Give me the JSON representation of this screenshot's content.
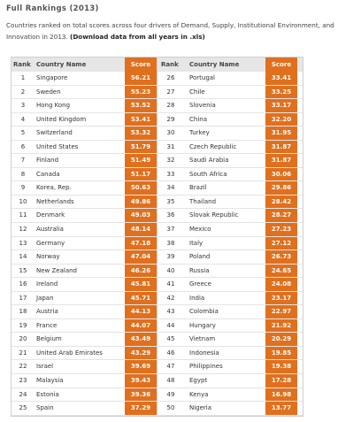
{
  "title": "Full Rankings (2013)",
  "intro": {
    "text": "Countries ranked on total scores across four drivers of Demand, Supply, Institutional Environment, and Innovation in 2013. ",
    "download_link": "(Download data from all years in .xls)"
  },
  "table": {
    "headers": {
      "rank": "Rank",
      "country": "Country Name",
      "score": "Score"
    },
    "left": [
      {
        "rank": "1",
        "country": "Singapore",
        "score": "56.21"
      },
      {
        "rank": "2",
        "country": "Sweden",
        "score": "55.23"
      },
      {
        "rank": "3",
        "country": "Hong Kong",
        "score": "53.52"
      },
      {
        "rank": "4",
        "country": "United Kingdom",
        "score": "53.41"
      },
      {
        "rank": "5",
        "country": "Switzerland",
        "score": "53.32"
      },
      {
        "rank": "6",
        "country": "United States",
        "score": "51.79"
      },
      {
        "rank": "7",
        "country": "Finland",
        "score": "51.49"
      },
      {
        "rank": "8",
        "country": "Canada",
        "score": "51.17"
      },
      {
        "rank": "9",
        "country": "Korea, Rep.",
        "score": "50.63"
      },
      {
        "rank": "10",
        "country": "Netherlands",
        "score": "49.86"
      },
      {
        "rank": "11",
        "country": "Denmark",
        "score": "49.03"
      },
      {
        "rank": "12",
        "country": "Australia",
        "score": "48.14"
      },
      {
        "rank": "13",
        "country": "Germany",
        "score": "47.18"
      },
      {
        "rank": "14",
        "country": "Norway",
        "score": "47.04"
      },
      {
        "rank": "15",
        "country": "New Zealand",
        "score": "46.26"
      },
      {
        "rank": "16",
        "country": "Ireland",
        "score": "45.81"
      },
      {
        "rank": "17",
        "country": "Japan",
        "score": "45.71"
      },
      {
        "rank": "18",
        "country": "Austria",
        "score": "44.13"
      },
      {
        "rank": "19",
        "country": "France",
        "score": "44.07"
      },
      {
        "rank": "20",
        "country": "Belgium",
        "score": "43.49"
      },
      {
        "rank": "21",
        "country": "United Arab Emirates",
        "score": "43.29"
      },
      {
        "rank": "22",
        "country": "Israel",
        "score": "39.69"
      },
      {
        "rank": "23",
        "country": "Malaysia",
        "score": "39.43"
      },
      {
        "rank": "24",
        "country": "Estonia",
        "score": "39.36"
      },
      {
        "rank": "25",
        "country": "Spain",
        "score": "37.29"
      }
    ],
    "right": [
      {
        "rank": "26",
        "country": "Portugal",
        "score": "33.41"
      },
      {
        "rank": "27",
        "country": "Chile",
        "score": "33.25"
      },
      {
        "rank": "28",
        "country": "Slovenia",
        "score": "33.17"
      },
      {
        "rank": "29",
        "country": "China",
        "score": "32.20"
      },
      {
        "rank": "30",
        "country": "Turkey",
        "score": "31.95"
      },
      {
        "rank": "31",
        "country": "Czech Republic",
        "score": "31.87"
      },
      {
        "rank": "32",
        "country": "Saudi Arabia",
        "score": "31.87"
      },
      {
        "rank": "33",
        "country": "South Africa",
        "score": "30.06"
      },
      {
        "rank": "34",
        "country": "Brazil",
        "score": "29.86"
      },
      {
        "rank": "35",
        "country": "Thailand",
        "score": "28.42"
      },
      {
        "rank": "36",
        "country": "Slovak Republic",
        "score": "28.27"
      },
      {
        "rank": "37",
        "country": "Mexico",
        "score": "27.23"
      },
      {
        "rank": "38",
        "country": "Italy",
        "score": "27.12"
      },
      {
        "rank": "39",
        "country": "Poland",
        "score": "26.73"
      },
      {
        "rank": "40",
        "country": "Russia",
        "score": "24.65"
      },
      {
        "rank": "41",
        "country": "Greece",
        "score": "24.08"
      },
      {
        "rank": "42",
        "country": "India",
        "score": "23.17"
      },
      {
        "rank": "43",
        "country": "Colombia",
        "score": "22.97"
      },
      {
        "rank": "44",
        "country": "Hungary",
        "score": "21.92"
      },
      {
        "rank": "45",
        "country": "Vietnam",
        "score": "20.29"
      },
      {
        "rank": "46",
        "country": "Indonesia",
        "score": "19.85"
      },
      {
        "rank": "47",
        "country": "Philippines",
        "score": "19.38"
      },
      {
        "rank": "48",
        "country": "Egypt",
        "score": "17.28"
      },
      {
        "rank": "49",
        "country": "Kenya",
        "score": "16.98"
      },
      {
        "rank": "50",
        "country": "Nigeria",
        "score": "13.77"
      }
    ]
  },
  "colors": {
    "score_bg": "#e0701e",
    "score_text": "#ffffff",
    "header_bg": "#e6e6e6"
  }
}
